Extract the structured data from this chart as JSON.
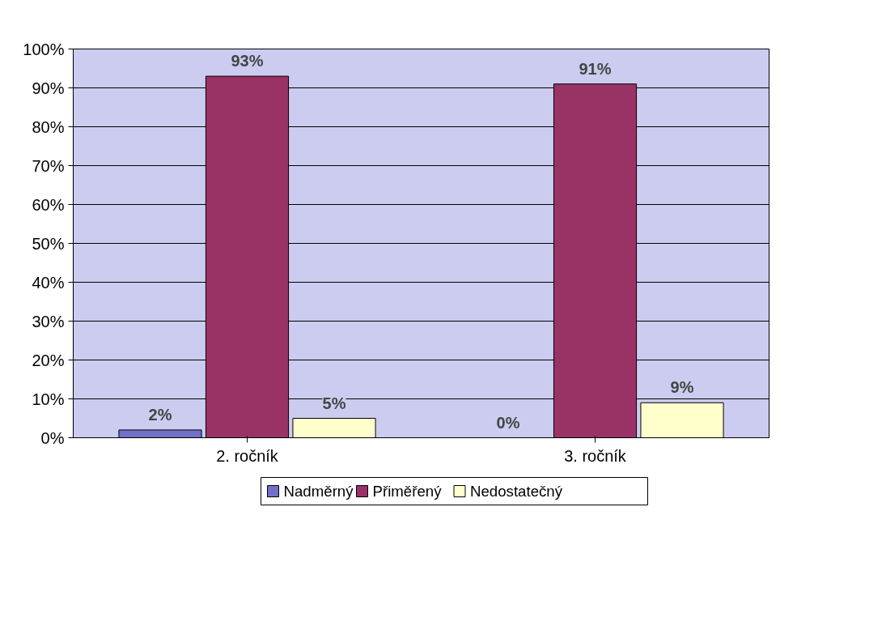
{
  "chart_data": {
    "type": "bar",
    "categories": [
      "2. ročník",
      "3. ročník"
    ],
    "series": [
      {
        "name": "Nadměrný",
        "color": "#7070c8",
        "values": [
          2,
          0
        ],
        "value_labels": [
          "2%",
          "0%"
        ]
      },
      {
        "name": "Přiměřený",
        "color": "#993366",
        "values": [
          93,
          91
        ],
        "value_labels": [
          "93%",
          "91%"
        ]
      },
      {
        "name": "Nedostatečný",
        "color": "#ffffcc",
        "values": [
          5,
          9
        ],
        "value_labels": [
          "5%",
          "9%"
        ]
      }
    ],
    "ylim": [
      0,
      100
    ],
    "yticks": [
      {
        "value": 0,
        "label": "0%"
      },
      {
        "value": 10,
        "label": "10%"
      },
      {
        "value": 20,
        "label": "20%"
      },
      {
        "value": 30,
        "label": "30%"
      },
      {
        "value": 40,
        "label": "40%"
      },
      {
        "value": 50,
        "label": "50%"
      },
      {
        "value": 60,
        "label": "60%"
      },
      {
        "value": 70,
        "label": "70%"
      },
      {
        "value": 80,
        "label": "80%"
      },
      {
        "value": 90,
        "label": "90%"
      },
      {
        "value": 100,
        "label": "100%"
      }
    ],
    "grid": "y",
    "legend": "bottom"
  }
}
